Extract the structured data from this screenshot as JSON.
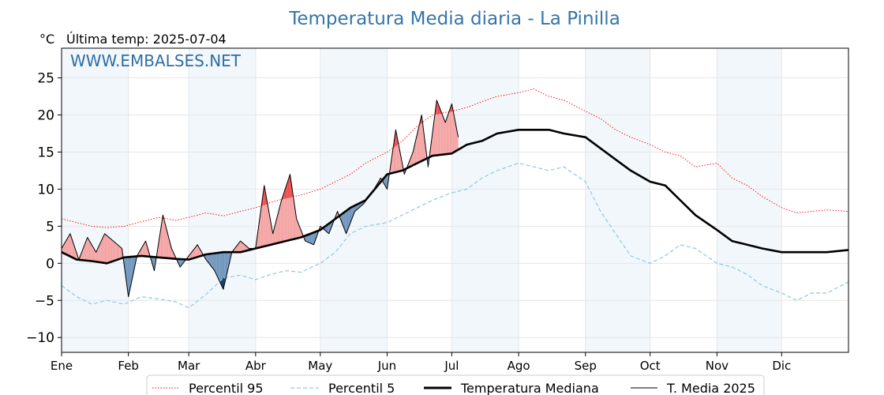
{
  "chart_data": {
    "type": "line",
    "title": "Temperatura Media diaria - La Pinilla",
    "unit_label": "°C",
    "last_temp_label": "Última temp: 2025-07-04",
    "watermark": "WWW.EMBALSES.NET",
    "xlabel": "",
    "ylabel": "",
    "xlim": [
      1,
      366
    ],
    "ylim": [
      -12,
      29
    ],
    "y_ticks": [
      25,
      20,
      15,
      10,
      5,
      0,
      -5,
      -10
    ],
    "y_tick_labels": [
      "25",
      "20",
      "15",
      "10",
      "5",
      "0",
      "−5",
      "−10"
    ],
    "month_labels": [
      "Ene",
      "Feb",
      "Mar",
      "Abr",
      "May",
      "Jun",
      "Jul",
      "Ago",
      "Sep",
      "Oct",
      "Nov",
      "Dic"
    ],
    "month_start_days": [
      1,
      32,
      60,
      91,
      121,
      152,
      182,
      213,
      244,
      274,
      305,
      335
    ],
    "grid": true,
    "legend_position": "bottom-center",
    "legend": [
      "Percentil 95",
      "Percentil 5",
      "Temperatura Mediana",
      "T. Media 2025"
    ],
    "colors": {
      "title": "#3575a8",
      "watermark": "#2e6da4",
      "p95": "#ff0000",
      "p5": "#8fc9dc",
      "median": "#000000",
      "current": "#000000",
      "fill_above": "#f4a3a3",
      "fill_above_extreme": "#ef4d4d",
      "fill_below": "#6f95bd",
      "fill_below_extreme": "#123a66",
      "band": "#f2f7fc"
    },
    "series": [
      {
        "name": "Percentil 95",
        "style": "dotted",
        "x": [
          1,
          8,
          15,
          22,
          30,
          38,
          46,
          54,
          60,
          68,
          76,
          84,
          91,
          98,
          105,
          112,
          121,
          128,
          135,
          142,
          152,
          159,
          166,
          173,
          182,
          189,
          196,
          203,
          213,
          220,
          227,
          234,
          244,
          251,
          258,
          265,
          274,
          281,
          288,
          295,
          305,
          312,
          319,
          326,
          335,
          342,
          349,
          356,
          366
        ],
        "y": [
          6,
          5.5,
          5,
          4.8,
          5,
          5.6,
          6.2,
          5.8,
          6.2,
          6.8,
          6.4,
          7,
          7.5,
          8.2,
          8.8,
          9.2,
          10,
          11,
          12,
          13.5,
          15,
          16.5,
          18.5,
          20,
          20.5,
          21,
          21.8,
          22.5,
          23,
          23.5,
          22.5,
          22,
          20.5,
          19.5,
          18,
          17,
          16,
          15,
          14.5,
          13,
          13.5,
          11.5,
          10.5,
          9,
          7.5,
          6.8,
          7,
          7.2,
          7
        ]
      },
      {
        "name": "Percentil 5",
        "style": "dashed",
        "x": [
          1,
          8,
          15,
          22,
          30,
          38,
          46,
          54,
          60,
          68,
          76,
          84,
          91,
          98,
          105,
          112,
          121,
          128,
          135,
          142,
          152,
          159,
          166,
          173,
          182,
          189,
          196,
          203,
          213,
          220,
          227,
          234,
          244,
          251,
          258,
          265,
          274,
          281,
          288,
          295,
          305,
          312,
          319,
          326,
          335,
          342,
          349,
          356,
          366
        ],
        "y": [
          -3,
          -4.5,
          -5.5,
          -5,
          -5.5,
          -4.5,
          -4.8,
          -5.2,
          -6,
          -4.2,
          -2,
          -1.6,
          -2.2,
          -1.5,
          -1,
          -1.2,
          0,
          1.5,
          4,
          5,
          5.5,
          6.5,
          7.5,
          8.5,
          9.5,
          10,
          11.5,
          12.5,
          13.5,
          13,
          12.5,
          13,
          11,
          7,
          4,
          1,
          0,
          1,
          2.5,
          2,
          0,
          -0.5,
          -1.5,
          -3,
          -4,
          -5,
          -4,
          -4,
          -2.5
        ]
      },
      {
        "name": "Temperatura Mediana",
        "style": "thick",
        "x": [
          1,
          8,
          15,
          22,
          30,
          38,
          46,
          54,
          60,
          68,
          76,
          84,
          91,
          98,
          105,
          112,
          121,
          128,
          135,
          142,
          152,
          159,
          166,
          173,
          182,
          189,
          196,
          203,
          213,
          220,
          227,
          234,
          244,
          251,
          258,
          265,
          274,
          281,
          288,
          295,
          305,
          312,
          319,
          326,
          335,
          342,
          349,
          356,
          366
        ],
        "y": [
          1.5,
          0.5,
          0.3,
          0,
          0.8,
          1,
          0.8,
          0.6,
          0.5,
          1.2,
          1.5,
          1.5,
          2,
          2.5,
          3,
          3.5,
          4.5,
          6,
          7.5,
          8.5,
          12,
          12.5,
          13.5,
          14.5,
          14.8,
          16,
          16.5,
          17.5,
          18,
          18,
          18,
          17.5,
          17,
          15.5,
          14,
          12.5,
          11,
          10.5,
          8.5,
          6.5,
          4.5,
          3,
          2.5,
          2,
          1.5,
          1.5,
          1.5,
          1.5,
          1.8
        ]
      },
      {
        "name": "T. Media 2025",
        "style": "thin",
        "x": [
          1,
          5,
          9,
          13,
          17,
          21,
          25,
          29,
          32,
          36,
          40,
          44,
          48,
          52,
          56,
          60,
          64,
          68,
          72,
          76,
          80,
          84,
          88,
          91,
          95,
          99,
          103,
          107,
          110,
          114,
          118,
          121,
          125,
          129,
          133,
          137,
          141,
          145,
          149,
          152,
          156,
          160,
          164,
          168,
          171,
          175,
          179,
          182,
          185
        ],
        "y": [
          2,
          4,
          0.5,
          3.5,
          1.5,
          4,
          3,
          2,
          -4.5,
          1,
          3,
          -1,
          6.5,
          2,
          -0.5,
          1,
          2.5,
          0.5,
          -1,
          -3.5,
          1.5,
          3,
          2,
          2,
          10.5,
          4,
          8.5,
          12,
          6,
          3,
          2.5,
          5,
          4,
          7,
          4,
          7,
          8,
          9.5,
          11.5,
          10,
          18,
          12,
          15,
          20,
          13,
          22,
          19,
          21.5,
          17
        ]
      }
    ]
  }
}
